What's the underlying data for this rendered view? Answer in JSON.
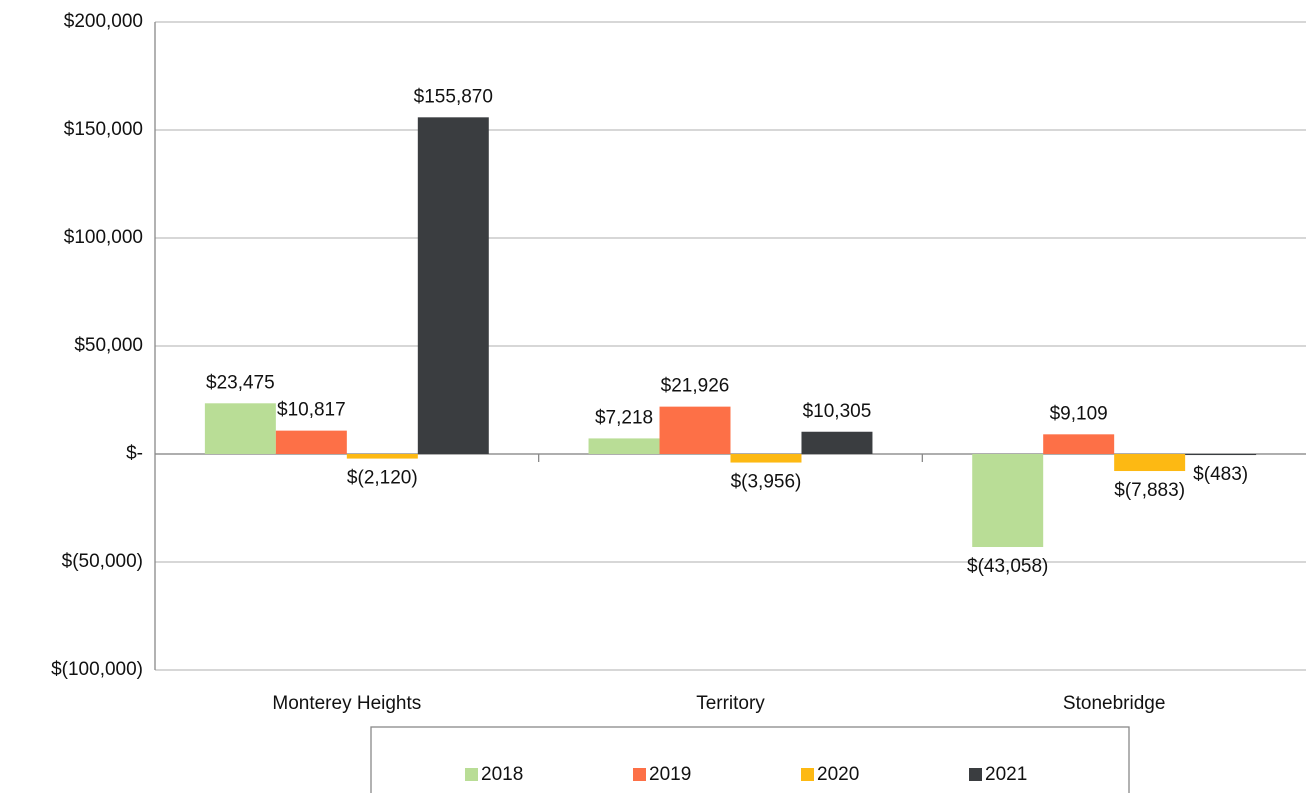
{
  "chart_data": {
    "type": "bar",
    "categories": [
      "Monterey Heights",
      "Territory",
      "Stonebridge"
    ],
    "series": [
      {
        "name": "2018",
        "color": "#b9dd96",
        "values": [
          23475,
          7218,
          -43058
        ],
        "value_labels": [
          "$23,475",
          "$7,218",
          "$(43,058)"
        ]
      },
      {
        "name": "2019",
        "color": "#fd7047",
        "values": [
          10817,
          21926,
          9109
        ],
        "value_labels": [
          "$10,817",
          "$21,926",
          "$9,109"
        ]
      },
      {
        "name": "2020",
        "color": "#fdb913",
        "values": [
          -2120,
          -3956,
          -7883
        ],
        "value_labels": [
          "$(2,120)",
          "$(3,956)",
          "$(7,883)"
        ]
      },
      {
        "name": "2021",
        "color": "#3a3d40",
        "values": [
          155870,
          10305,
          -483
        ],
        "value_labels": [
          "$155,870",
          "$10,305",
          "$(483)"
        ]
      }
    ],
    "ylim": [
      -100000,
      200000
    ],
    "yticks": [
      {
        "value": -100000,
        "label": "$(100,000)"
      },
      {
        "value": -50000,
        "label": "$(50,000)"
      },
      {
        "value": 0,
        "label": "$-"
      },
      {
        "value": 50000,
        "label": "$50,000"
      },
      {
        "value": 100000,
        "label": "$100,000"
      },
      {
        "value": 150000,
        "label": "$150,000"
      },
      {
        "value": 200000,
        "label": "$200,000"
      }
    ],
    "grid": true,
    "legend": "bottom"
  }
}
